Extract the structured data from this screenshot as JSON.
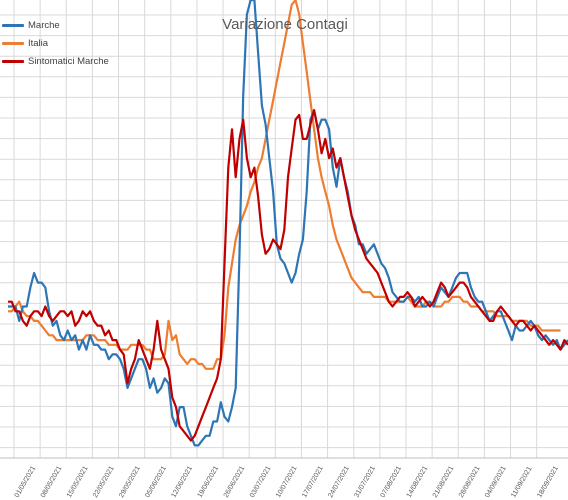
{
  "chart_data": {
    "type": "line",
    "title": "Variazione Contagi",
    "xlabel": "",
    "ylabel": "",
    "grid": true,
    "legend_position": "top-left",
    "x_ticks": [
      "01/05/2021",
      "08/05/2021",
      "15/05/2021",
      "22/05/2021",
      "29/05/2021",
      "05/06/2021",
      "12/06/2021",
      "19/06/2021",
      "26/06/2021",
      "03/07/2021",
      "10/07/2021",
      "17/07/2021",
      "24/07/2021",
      "31/07/2021",
      "07/08/2021",
      "14/08/2021",
      "21/08/2021",
      "28/08/2021",
      "04/09/2021",
      "11/09/2021",
      "18/09/2021"
    ],
    "x_start": "2021-05-01",
    "series": [
      {
        "name": "Marche",
        "color": "#2e75b6",
        "values": [
          0.31,
          0.31,
          0.31,
          0.28,
          0.31,
          0.31,
          0.35,
          0.38,
          0.36,
          0.36,
          0.35,
          0.3,
          0.27,
          0.28,
          0.25,
          0.24,
          0.26,
          0.24,
          0.25,
          0.22,
          0.24,
          0.22,
          0.25,
          0.23,
          0.23,
          0.22,
          0.22,
          0.2,
          0.21,
          0.21,
          0.2,
          0.18,
          0.14,
          0.16,
          0.18,
          0.2,
          0.2,
          0.18,
          0.14,
          0.16,
          0.13,
          0.14,
          0.16,
          0.15,
          0.08,
          0.06,
          0.1,
          0.1,
          0.06,
          0.04,
          0.02,
          0.02,
          0.03,
          0.04,
          0.04,
          0.07,
          0.07,
          0.11,
          0.08,
          0.07,
          0.1,
          0.14,
          0.42,
          0.75,
          0.92,
          0.98,
          0.96,
          0.84,
          0.73,
          0.69,
          0.62,
          0.55,
          0.44,
          0.41,
          0.4,
          0.38,
          0.36,
          0.38,
          0.42,
          0.45,
          0.55,
          0.7,
          0.72,
          0.68,
          0.7,
          0.7,
          0.68,
          0.6,
          0.56,
          0.62,
          0.58,
          0.55,
          0.5,
          0.48,
          0.44,
          0.44,
          0.42,
          0.43,
          0.44,
          0.42,
          0.4,
          0.39,
          0.37,
          0.34,
          0.33,
          0.32,
          0.32,
          0.33,
          0.33,
          0.32,
          0.33,
          0.31,
          0.31,
          0.32,
          0.31,
          0.33,
          0.35,
          0.34,
          0.33,
          0.35,
          0.37,
          0.38,
          0.38,
          0.38,
          0.35,
          0.33,
          0.32,
          0.32,
          0.3,
          0.28,
          0.29,
          0.3,
          0.3,
          0.28,
          0.26,
          0.24,
          0.27,
          0.26,
          0.26,
          0.27,
          0.28,
          0.27,
          0.25,
          0.24,
          0.25,
          0.24,
          0.23,
          0.24,
          0.22,
          0.23,
          0.24
        ]
      },
      {
        "name": "Italia",
        "color": "#ed7d31",
        "values": [
          0.3,
          0.3,
          0.31,
          0.32,
          0.3,
          0.29,
          0.29,
          0.28,
          0.28,
          0.27,
          0.26,
          0.25,
          0.25,
          0.24,
          0.24,
          0.24,
          0.24,
          0.24,
          0.24,
          0.24,
          0.24,
          0.25,
          0.25,
          0.25,
          0.24,
          0.24,
          0.24,
          0.23,
          0.23,
          0.23,
          0.22,
          0.22,
          0.22,
          0.23,
          0.23,
          0.23,
          0.23,
          0.22,
          0.22,
          0.2,
          0.2,
          0.2,
          0.21,
          0.28,
          0.24,
          0.25,
          0.21,
          0.2,
          0.19,
          0.2,
          0.2,
          0.19,
          0.19,
          0.18,
          0.18,
          0.18,
          0.2,
          0.2,
          0.25,
          0.35,
          0.4,
          0.45,
          0.48,
          0.5,
          0.52,
          0.55,
          0.57,
          0.6,
          0.62,
          0.66,
          0.7,
          0.74,
          0.78,
          0.82,
          0.86,
          0.9,
          0.94,
          0.96,
          0.92,
          0.86,
          0.8,
          0.74,
          0.68,
          0.62,
          0.58,
          0.55,
          0.52,
          0.48,
          0.45,
          0.43,
          0.41,
          0.39,
          0.37,
          0.36,
          0.35,
          0.34,
          0.34,
          0.34,
          0.33,
          0.33,
          0.33,
          0.33,
          0.32,
          0.32,
          0.32,
          0.32,
          0.32,
          0.33,
          0.32,
          0.31,
          0.31,
          0.31,
          0.32,
          0.32,
          0.31,
          0.31,
          0.31,
          0.32,
          0.32,
          0.33,
          0.33,
          0.33,
          0.32,
          0.32,
          0.31,
          0.31,
          0.31,
          0.3,
          0.3,
          0.3,
          0.3,
          0.29,
          0.29,
          0.29,
          0.29,
          0.28,
          0.28,
          0.28,
          0.28,
          0.28,
          0.27,
          0.27,
          0.27,
          0.26,
          0.26,
          0.26,
          0.26,
          0.26,
          0.26
        ]
      },
      {
        "name": "Sintomatici Marche",
        "color": "#c00000",
        "values": [
          0.32,
          0.32,
          0.3,
          0.3,
          0.28,
          0.27,
          0.29,
          0.3,
          0.3,
          0.29,
          0.31,
          0.29,
          0.28,
          0.29,
          0.3,
          0.3,
          0.29,
          0.3,
          0.27,
          0.28,
          0.3,
          0.29,
          0.3,
          0.28,
          0.27,
          0.27,
          0.25,
          0.26,
          0.24,
          0.24,
          0.22,
          0.21,
          0.15,
          0.18,
          0.2,
          0.24,
          0.22,
          0.2,
          0.18,
          0.22,
          0.28,
          0.22,
          0.2,
          0.18,
          0.12,
          0.1,
          0.06,
          0.05,
          0.04,
          0.03,
          0.04,
          0.06,
          0.08,
          0.1,
          0.12,
          0.14,
          0.16,
          0.2,
          0.4,
          0.6,
          0.68,
          0.58,
          0.66,
          0.7,
          0.62,
          0.58,
          0.6,
          0.54,
          0.46,
          0.42,
          0.43,
          0.45,
          0.44,
          0.43,
          0.47,
          0.58,
          0.64,
          0.7,
          0.71,
          0.66,
          0.66,
          0.69,
          0.72,
          0.68,
          0.63,
          0.66,
          0.62,
          0.64,
          0.6,
          0.62,
          0.58,
          0.54,
          0.5,
          0.47,
          0.45,
          0.43,
          0.41,
          0.4,
          0.39,
          0.38,
          0.36,
          0.34,
          0.32,
          0.31,
          0.32,
          0.33,
          0.33,
          0.34,
          0.33,
          0.31,
          0.32,
          0.33,
          0.32,
          0.31,
          0.32,
          0.34,
          0.36,
          0.35,
          0.33,
          0.34,
          0.35,
          0.36,
          0.36,
          0.35,
          0.33,
          0.32,
          0.31,
          0.3,
          0.29,
          0.28,
          0.28,
          0.3,
          0.31,
          0.3,
          0.29,
          0.28,
          0.27,
          0.28,
          0.28,
          0.27,
          0.26,
          0.27,
          0.26,
          0.25,
          0.24,
          0.23,
          0.24,
          0.23,
          0.22,
          0.24,
          0.23
        ]
      }
    ]
  }
}
